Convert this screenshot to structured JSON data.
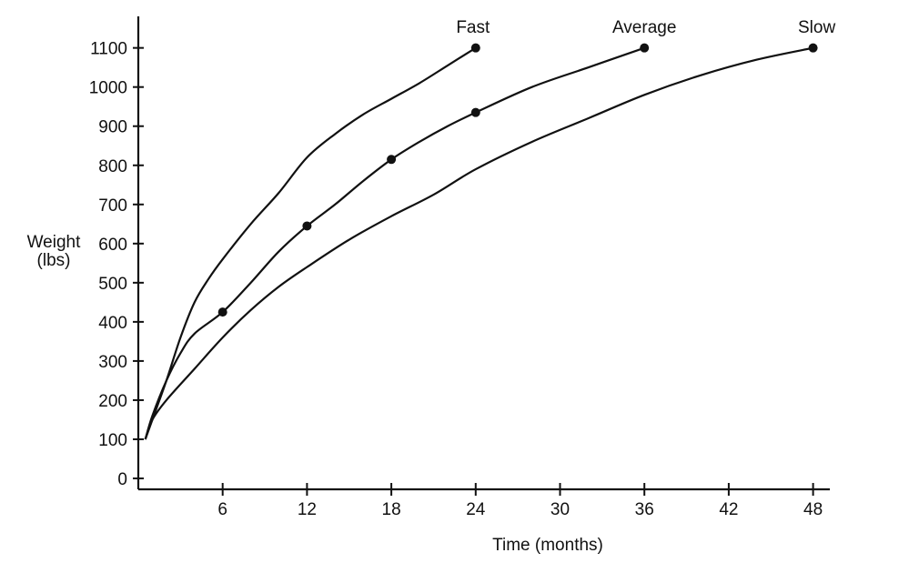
{
  "chart_data": {
    "type": "line",
    "xlabel": "Time (months)",
    "ylabel_lines": [
      "Weight",
      "(lbs)"
    ],
    "x_ticks": [
      6,
      12,
      18,
      24,
      30,
      36,
      42,
      48
    ],
    "y_ticks": [
      0,
      100,
      200,
      300,
      400,
      500,
      600,
      700,
      800,
      900,
      1000,
      1100
    ],
    "xlim": [
      0,
      50
    ],
    "ylim": [
      0,
      1150
    ],
    "grid": false,
    "series": [
      {
        "name": "Fast",
        "points": [
          [
            0.5,
            100
          ],
          [
            1,
            150
          ],
          [
            2,
            250
          ],
          [
            3,
            360
          ],
          [
            4,
            450
          ],
          [
            5,
            510
          ],
          [
            6,
            560
          ],
          [
            8,
            650
          ],
          [
            10,
            730
          ],
          [
            12,
            820
          ],
          [
            14,
            880
          ],
          [
            16,
            930
          ],
          [
            18,
            970
          ],
          [
            20,
            1010
          ],
          [
            22,
            1055
          ],
          [
            24,
            1100
          ]
        ],
        "markers": [
          [
            24,
            1100
          ]
        ]
      },
      {
        "name": "Average",
        "points": [
          [
            0.5,
            100
          ],
          [
            1,
            160
          ],
          [
            2,
            250
          ],
          [
            3,
            320
          ],
          [
            4,
            370
          ],
          [
            6,
            425
          ],
          [
            8,
            500
          ],
          [
            10,
            580
          ],
          [
            12,
            645
          ],
          [
            14,
            700
          ],
          [
            16,
            760
          ],
          [
            18,
            815
          ],
          [
            20,
            860
          ],
          [
            22,
            900
          ],
          [
            24,
            935
          ],
          [
            28,
            1000
          ],
          [
            32,
            1050
          ],
          [
            36,
            1100
          ]
        ],
        "markers": [
          [
            6,
            425
          ],
          [
            12,
            645
          ],
          [
            18,
            815
          ],
          [
            24,
            935
          ],
          [
            36,
            1100
          ]
        ]
      },
      {
        "name": "Slow",
        "points": [
          [
            0.5,
            100
          ],
          [
            1,
            150
          ],
          [
            2,
            200
          ],
          [
            4,
            280
          ],
          [
            6,
            360
          ],
          [
            8,
            430
          ],
          [
            10,
            490
          ],
          [
            12,
            540
          ],
          [
            15,
            610
          ],
          [
            18,
            670
          ],
          [
            21,
            725
          ],
          [
            24,
            790
          ],
          [
            28,
            860
          ],
          [
            32,
            920
          ],
          [
            36,
            980
          ],
          [
            40,
            1030
          ],
          [
            44,
            1070
          ],
          [
            48,
            1100
          ]
        ],
        "markers": [
          [
            48,
            1100
          ]
        ]
      }
    ]
  }
}
